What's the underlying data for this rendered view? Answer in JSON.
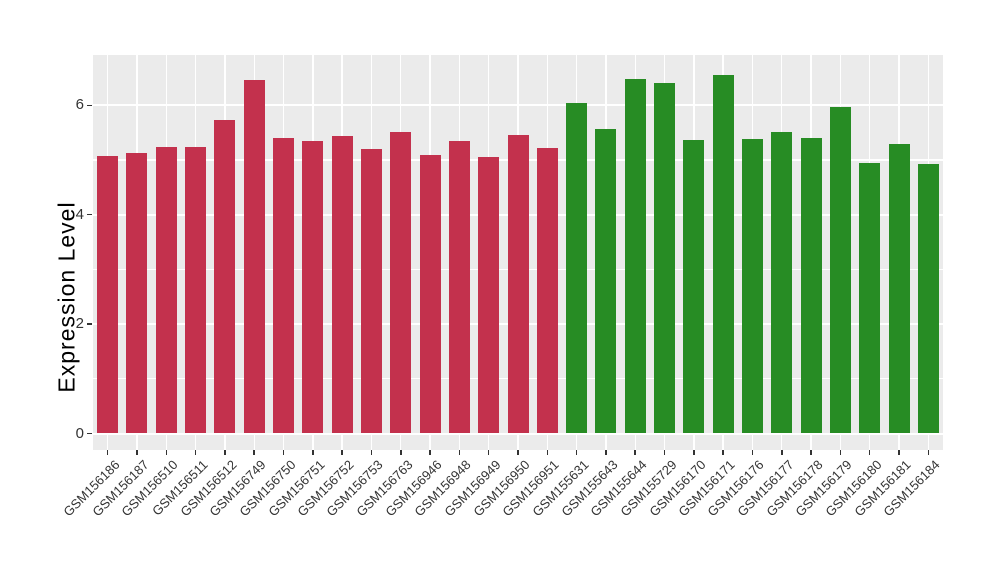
{
  "figure": {
    "background": "#FFFFFF",
    "panel_background": "#EBEBEB",
    "gridline_color": "#FFFFFF",
    "tick_color": "#333333",
    "tick_label_color": "#333333",
    "axis_title_color": "#000000"
  },
  "chart_data": {
    "type": "bar",
    "title": "",
    "xlabel": "",
    "ylabel": "Expression Level",
    "ylim": [
      0,
      6.9
    ],
    "yticks": [
      0,
      2,
      4,
      6
    ],
    "yticks_minor": [
      1,
      3,
      5
    ],
    "grid": true,
    "legend": false,
    "x_tick_rotation_deg": 45,
    "categories": [
      "GSM156186",
      "GSM156187",
      "GSM156510",
      "GSM156511",
      "GSM156512",
      "GSM156749",
      "GSM156750",
      "GSM156751",
      "GSM156752",
      "GSM156753",
      "GSM156763",
      "GSM156946",
      "GSM156948",
      "GSM156949",
      "GSM156950",
      "GSM156951",
      "GSM155631",
      "GSM155643",
      "GSM155644",
      "GSM155729",
      "GSM156170",
      "GSM156171",
      "GSM156176",
      "GSM156177",
      "GSM156178",
      "GSM156179",
      "GSM156180",
      "GSM156181",
      "GSM156184"
    ],
    "values": [
      5.07,
      5.13,
      5.23,
      5.23,
      5.74,
      6.46,
      5.41,
      5.35,
      5.43,
      5.2,
      5.52,
      5.09,
      5.35,
      5.06,
      5.46,
      5.22,
      6.05,
      5.56,
      6.48,
      6.41,
      5.37,
      6.56,
      5.39,
      5.51,
      5.41,
      5.97,
      4.95,
      5.3,
      4.92
    ],
    "groups": [
      "group1",
      "group1",
      "group1",
      "group1",
      "group1",
      "group1",
      "group1",
      "group1",
      "group1",
      "group1",
      "group1",
      "group1",
      "group1",
      "group1",
      "group1",
      "group1",
      "group2",
      "group2",
      "group2",
      "group2",
      "group2",
      "group2",
      "group2",
      "group2",
      "group2",
      "group2",
      "group2",
      "group2",
      "group2"
    ],
    "group_colors": {
      "group1": "#C3314D",
      "group2": "#278C24"
    }
  }
}
